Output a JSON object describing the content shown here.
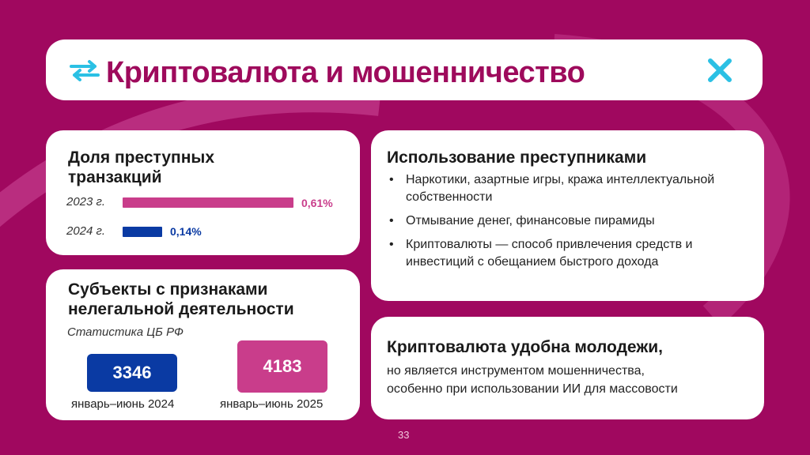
{
  "title": "Криптовалюта и мошенничество",
  "colors": {
    "background": "#a0085f",
    "pink": "#c93d8b",
    "blue": "#0a3aa3",
    "accent_cyan": "#2bc0e4"
  },
  "icons": [
    "swap-arrows-icon",
    "cross-icon"
  ],
  "share_card": {
    "heading_line1": "Доля преступных",
    "heading_line2": "транзакций",
    "rows": [
      {
        "year": "2023 г.",
        "value_label": "0,61%",
        "value": 0.61
      },
      {
        "year": "2024 г.",
        "value_label": "0,14%",
        "value": 0.14
      }
    ]
  },
  "subjects_card": {
    "heading_line1": "Субъекты с признаками",
    "heading_line2": "нелегальной деятельности",
    "subtitle": "Статистика ЦБ РФ",
    "stats": [
      {
        "value": "3346",
        "period": "январь–июнь 2024"
      },
      {
        "value": "4183",
        "period": "январь–июнь 2025"
      }
    ]
  },
  "use_card": {
    "heading": "Использование преступниками",
    "bullets": [
      "Наркотики, азартные игры, кража интеллектуальной собственности",
      "Отмывание денег, финансовые пирамиды",
      "Криптовалюты — способ привлечения средств и инвестиций с обещанием быстрого дохода"
    ]
  },
  "youth_card": {
    "heading": "Криптовалюта удобна молодежи,",
    "text_line1": "но является инструментом мошенничества,",
    "text_line2": "особенно при использовании ИИ для массовости"
  },
  "page_number": "33"
}
